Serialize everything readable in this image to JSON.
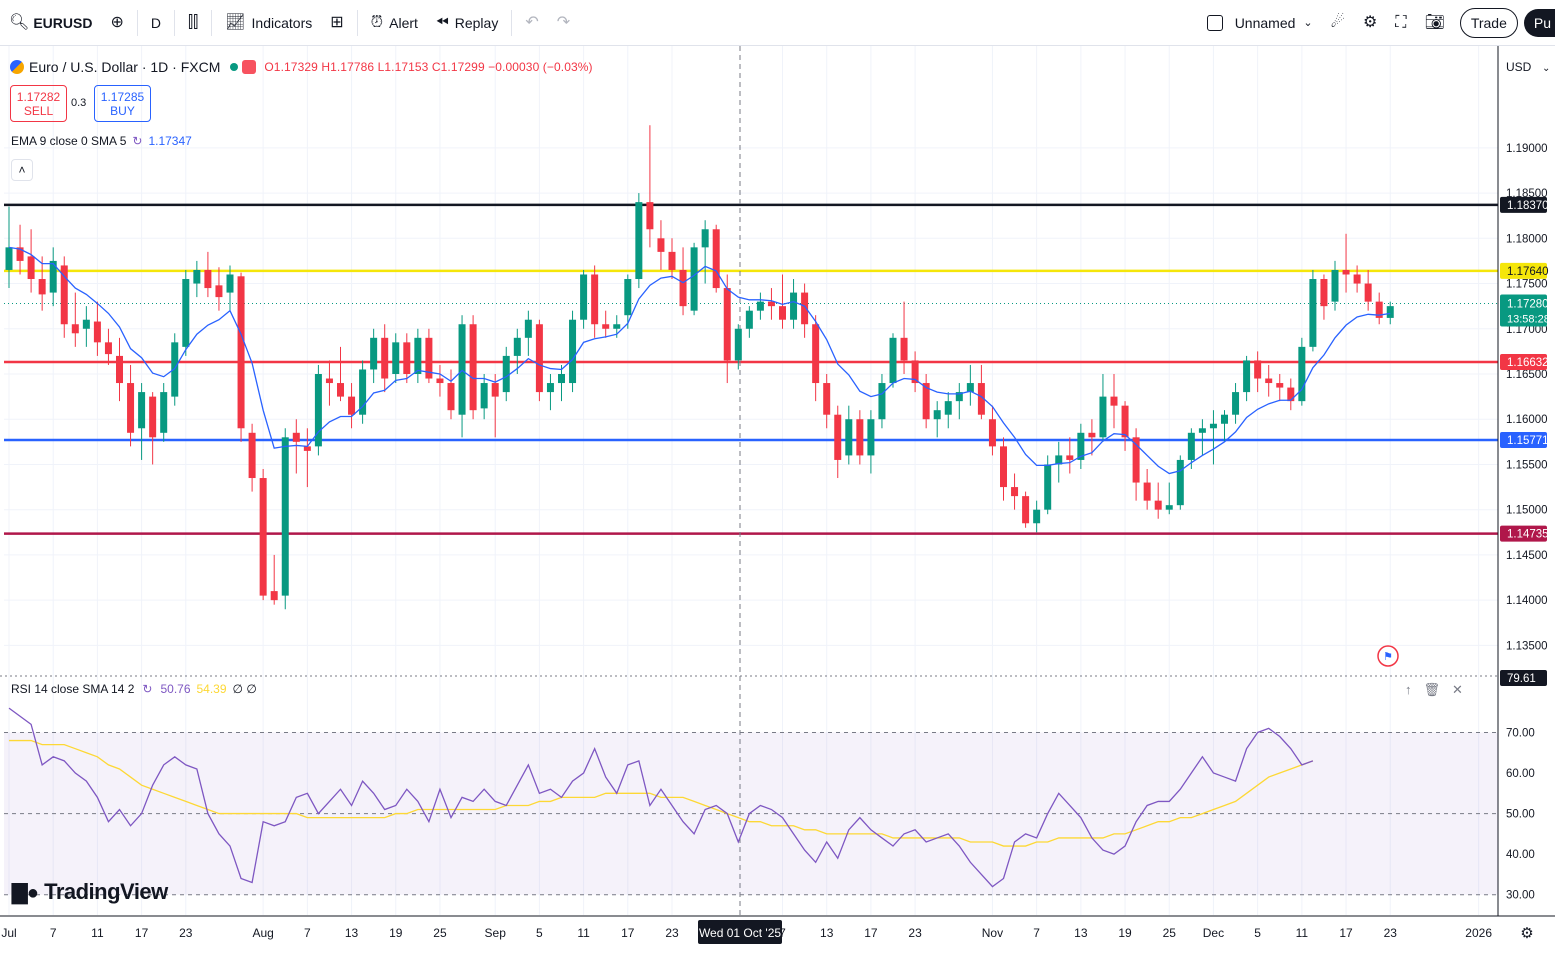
{
  "toolbar": {
    "symbol": "EURUSD",
    "interval": "D",
    "indicators_label": "Indicators",
    "alert_label": "Alert",
    "replay_label": "Replay",
    "layout_name": "Unnamed",
    "trade_label": "Trade",
    "publish_label": "Pu"
  },
  "legend": {
    "title": "Euro / U.S. Dollar · 1D · FXCM",
    "ohlc": "O1.17329 H1.17786 L1.17153 C1.17299 −0.00030 (−0.03%)"
  },
  "trade": {
    "sell_price": "1.17282",
    "sell_label": "SELL",
    "spread": "0.3",
    "buy_price": "1.17285",
    "buy_label": "BUY"
  },
  "ema": {
    "label": "EMA 9 close 0 SMA 5",
    "value": "1.17347"
  },
  "rsi_legend": {
    "label": "RSI 14 close SMA 14 2",
    "value1": "50.76",
    "value2": "54.39",
    "extra": "∅ ∅"
  },
  "currency": "USD",
  "brand": "TradingView",
  "crosshair_date": "Wed 01 Oct '25",
  "price_axis": {
    "ticks": [
      "1.19000",
      "1.18500",
      "1.18000",
      "1.17500",
      "1.17000",
      "1.16500",
      "1.16000",
      "1.15500",
      "1.15000",
      "1.14500",
      "1.14000",
      "1.13500"
    ],
    "tick_values": [
      1.19,
      1.185,
      1.18,
      1.175,
      1.17,
      1.165,
      1.16,
      1.155,
      1.15,
      1.145,
      1.14,
      1.135
    ]
  },
  "levels": [
    {
      "value": 1.1837,
      "label": "1.18370",
      "color": "#131722"
    },
    {
      "value": 1.1764,
      "label": "1.17640",
      "color": "#f5e60a"
    },
    {
      "value": 1.16632,
      "label": "1.16632",
      "color": "#f23645"
    },
    {
      "value": 1.15771,
      "label": "1.15771",
      "color": "#2962ff"
    },
    {
      "value": 1.14735,
      "label": "1.14735",
      "color": "#b0174a"
    }
  ],
  "last_price": {
    "value": 1.1728,
    "label": "1.17280",
    "countdown": "13:58:28",
    "color": "#089981"
  },
  "rsi_axis": {
    "ticks": [
      "70.00",
      "60.00",
      "50.00",
      "40.00",
      "30.00"
    ],
    "tick_values": [
      70,
      60,
      50,
      40,
      30
    ],
    "last": "79.61"
  },
  "time_axis": {
    "labels": [
      "Jul",
      "7",
      "11",
      "17",
      "23",
      "Aug",
      "7",
      "13",
      "19",
      "25",
      "Sep",
      "5",
      "11",
      "17",
      "23",
      "7",
      "13",
      "17",
      "23",
      "Nov",
      "7",
      "13",
      "19",
      "25",
      "Dec",
      "5",
      "11",
      "17",
      "23",
      "2026"
    ],
    "bar_index": [
      0,
      4,
      8,
      12,
      16,
      23,
      27,
      31,
      35,
      39,
      44,
      48,
      52,
      56,
      60,
      70,
      74,
      78,
      82,
      89,
      93,
      97,
      101,
      105,
      109,
      113,
      117,
      121,
      125,
      133
    ]
  },
  "chart_data": {
    "type": "candlestick",
    "ylim": [
      1.1325,
      1.1975
    ],
    "candles": [
      [
        1.1765,
        1.1835,
        1.1745,
        1.179
      ],
      [
        1.179,
        1.1815,
        1.176,
        1.1775
      ],
      [
        1.178,
        1.181,
        1.174,
        1.1755
      ],
      [
        1.1755,
        1.178,
        1.172,
        1.1738
      ],
      [
        1.174,
        1.179,
        1.1725,
        1.1775
      ],
      [
        1.177,
        1.178,
        1.169,
        1.1705
      ],
      [
        1.1705,
        1.174,
        1.168,
        1.1695
      ],
      [
        1.17,
        1.1725,
        1.168,
        1.171
      ],
      [
        1.1708,
        1.173,
        1.167,
        1.1685
      ],
      [
        1.1685,
        1.17,
        1.166,
        1.1672
      ],
      [
        1.167,
        1.169,
        1.162,
        1.164
      ],
      [
        1.164,
        1.166,
        1.157,
        1.1585
      ],
      [
        1.159,
        1.164,
        1.1555,
        1.163
      ],
      [
        1.1625,
        1.163,
        1.155,
        1.158
      ],
      [
        1.1585,
        1.164,
        1.1575,
        1.163
      ],
      [
        1.1625,
        1.1695,
        1.1615,
        1.1685
      ],
      [
        1.168,
        1.1765,
        1.167,
        1.1755
      ],
      [
        1.175,
        1.1775,
        1.1735,
        1.1765
      ],
      [
        1.1765,
        1.1785,
        1.1735,
        1.1745
      ],
      [
        1.1748,
        1.1768,
        1.172,
        1.1735
      ],
      [
        1.174,
        1.177,
        1.172,
        1.176
      ],
      [
        1.1758,
        1.1762,
        1.1575,
        1.159
      ],
      [
        1.1585,
        1.1595,
        1.152,
        1.1535
      ],
      [
        1.1535,
        1.1545,
        1.14,
        1.1405
      ],
      [
        1.141,
        1.145,
        1.1395,
        1.14
      ],
      [
        1.1405,
        1.159,
        1.139,
        1.158
      ],
      [
        1.1585,
        1.16,
        1.154,
        1.1575
      ],
      [
        1.157,
        1.159,
        1.1525,
        1.1565
      ],
      [
        1.157,
        1.166,
        1.156,
        1.165
      ],
      [
        1.1645,
        1.1665,
        1.1615,
        1.164
      ],
      [
        1.164,
        1.168,
        1.162,
        1.1625
      ],
      [
        1.1625,
        1.164,
        1.159,
        1.1605
      ],
      [
        1.1605,
        1.1665,
        1.1595,
        1.1655
      ],
      [
        1.1655,
        1.17,
        1.164,
        1.169
      ],
      [
        1.169,
        1.1705,
        1.163,
        1.1645
      ],
      [
        1.165,
        1.1695,
        1.164,
        1.1685
      ],
      [
        1.1685,
        1.1695,
        1.164,
        1.165
      ],
      [
        1.165,
        1.17,
        1.164,
        1.169
      ],
      [
        1.169,
        1.17,
        1.164,
        1.1645
      ],
      [
        1.1645,
        1.166,
        1.1625,
        1.164
      ],
      [
        1.164,
        1.1655,
        1.16,
        1.161
      ],
      [
        1.1605,
        1.1715,
        1.158,
        1.1705
      ],
      [
        1.1705,
        1.1715,
        1.16,
        1.161
      ],
      [
        1.1612,
        1.165,
        1.16,
        1.164
      ],
      [
        1.164,
        1.165,
        1.158,
        1.1625
      ],
      [
        1.163,
        1.168,
        1.162,
        1.167
      ],
      [
        1.167,
        1.17,
        1.165,
        1.169
      ],
      [
        1.169,
        1.172,
        1.167,
        1.171
      ],
      [
        1.1705,
        1.171,
        1.162,
        1.163
      ],
      [
        1.163,
        1.165,
        1.161,
        1.164
      ],
      [
        1.164,
        1.166,
        1.162,
        1.165
      ],
      [
        1.164,
        1.172,
        1.163,
        1.171
      ],
      [
        1.171,
        1.1765,
        1.17,
        1.176
      ],
      [
        1.176,
        1.177,
        1.169,
        1.1705
      ],
      [
        1.1705,
        1.172,
        1.169,
        1.17
      ],
      [
        1.17,
        1.1715,
        1.169,
        1.1705
      ],
      [
        1.1715,
        1.176,
        1.17,
        1.1755
      ],
      [
        1.1755,
        1.185,
        1.1745,
        1.184
      ],
      [
        1.184,
        1.1925,
        1.179,
        1.181
      ],
      [
        1.18,
        1.182,
        1.1765,
        1.1785
      ],
      [
        1.1785,
        1.18,
        1.1755,
        1.1765
      ],
      [
        1.1765,
        1.179,
        1.1715,
        1.1725
      ],
      [
        1.172,
        1.1795,
        1.1715,
        1.179
      ],
      [
        1.179,
        1.182,
        1.175,
        1.181
      ],
      [
        1.181,
        1.1815,
        1.174,
        1.1745
      ],
      [
        1.1745,
        1.176,
        1.164,
        1.1665
      ],
      [
        1.1665,
        1.1705,
        1.1655,
        1.17
      ],
      [
        1.17,
        1.1725,
        1.169,
        1.172
      ],
      [
        1.172,
        1.174,
        1.171,
        1.173
      ],
      [
        1.173,
        1.1745,
        1.171,
        1.1725
      ],
      [
        1.1725,
        1.176,
        1.17,
        1.171
      ],
      [
        1.171,
        1.1755,
        1.17,
        1.174
      ],
      [
        1.174,
        1.175,
        1.169,
        1.1705
      ],
      [
        1.1705,
        1.1715,
        1.162,
        1.164
      ],
      [
        1.164,
        1.165,
        1.159,
        1.1605
      ],
      [
        1.1605,
        1.1615,
        1.1535,
        1.1555
      ],
      [
        1.156,
        1.1615,
        1.155,
        1.16
      ],
      [
        1.16,
        1.161,
        1.155,
        1.156
      ],
      [
        1.156,
        1.161,
        1.154,
        1.16
      ],
      [
        1.16,
        1.165,
        1.159,
        1.164
      ],
      [
        1.164,
        1.1695,
        1.1635,
        1.169
      ],
      [
        1.169,
        1.173,
        1.165,
        1.1665
      ],
      [
        1.1665,
        1.1675,
        1.163,
        1.164
      ],
      [
        1.164,
        1.165,
        1.159,
        1.16
      ],
      [
        1.16,
        1.162,
        1.158,
        1.161
      ],
      [
        1.1605,
        1.163,
        1.159,
        1.162
      ],
      [
        1.162,
        1.164,
        1.16,
        1.163
      ],
      [
        1.163,
        1.166,
        1.1615,
        1.164
      ],
      [
        1.164,
        1.166,
        1.16,
        1.1605
      ],
      [
        1.16,
        1.1615,
        1.156,
        1.157
      ],
      [
        1.157,
        1.158,
        1.151,
        1.1525
      ],
      [
        1.1525,
        1.154,
        1.15,
        1.1515
      ],
      [
        1.1515,
        1.152,
        1.148,
        1.1485
      ],
      [
        1.1485,
        1.151,
        1.1475,
        1.15
      ],
      [
        1.15,
        1.156,
        1.1495,
        1.155
      ],
      [
        1.155,
        1.1575,
        1.153,
        1.156
      ],
      [
        1.156,
        1.158,
        1.154,
        1.1555
      ],
      [
        1.1555,
        1.1595,
        1.1545,
        1.1585
      ],
      [
        1.1585,
        1.16,
        1.156,
        1.158
      ],
      [
        1.158,
        1.165,
        1.1575,
        1.1625
      ],
      [
        1.1625,
        1.165,
        1.159,
        1.1615
      ],
      [
        1.1615,
        1.162,
        1.1565,
        1.158
      ],
      [
        1.158,
        1.159,
        1.151,
        1.153
      ],
      [
        1.153,
        1.1545,
        1.15,
        1.151
      ],
      [
        1.151,
        1.153,
        1.149,
        1.15
      ],
      [
        1.15,
        1.153,
        1.1495,
        1.1505
      ],
      [
        1.1505,
        1.156,
        1.15,
        1.1555
      ],
      [
        1.1555,
        1.159,
        1.1545,
        1.1585
      ],
      [
        1.1585,
        1.16,
        1.156,
        1.159
      ],
      [
        1.159,
        1.161,
        1.155,
        1.1595
      ],
      [
        1.1595,
        1.161,
        1.1575,
        1.1605
      ],
      [
        1.1605,
        1.164,
        1.1595,
        1.163
      ],
      [
        1.163,
        1.167,
        1.162,
        1.1665
      ],
      [
        1.1665,
        1.1675,
        1.163,
        1.1645
      ],
      [
        1.1645,
        1.166,
        1.1625,
        1.164
      ],
      [
        1.164,
        1.165,
        1.162,
        1.1635
      ],
      [
        1.1635,
        1.1645,
        1.161,
        1.162
      ],
      [
        1.162,
        1.169,
        1.1615,
        1.168
      ],
      [
        1.168,
        1.1765,
        1.1675,
        1.1755
      ],
      [
        1.1755,
        1.176,
        1.171,
        1.1725
      ],
      [
        1.173,
        1.1775,
        1.172,
        1.1765
      ],
      [
        1.1765,
        1.1805,
        1.174,
        1.176
      ],
      [
        1.176,
        1.177,
        1.174,
        1.175
      ],
      [
        1.175,
        1.1765,
        1.172,
        1.173
      ],
      [
        1.173,
        1.174,
        1.1705,
        1.1712
      ],
      [
        1.1712,
        1.173,
        1.1705,
        1.1725
      ]
    ],
    "ema": [
      1.179,
      1.1788,
      1.1782,
      1.1772,
      1.1772,
      1.1758,
      1.1745,
      1.1738,
      1.1728,
      1.1717,
      1.1702,
      1.1678,
      1.1668,
      1.1651,
      1.1647,
      1.1656,
      1.1677,
      1.1694,
      1.1704,
      1.171,
      1.172,
      1.1694,
      1.1662,
      1.161,
      1.1568,
      1.157,
      1.1571,
      1.157,
      1.1586,
      1.1597,
      1.1603,
      1.1603,
      1.1614,
      1.1629,
      1.1632,
      1.1643,
      1.1645,
      1.1654,
      1.1652,
      1.165,
      1.1642,
      1.1654,
      1.1645,
      1.1645,
      1.1641,
      1.1647,
      1.1656,
      1.1667,
      1.166,
      1.1656,
      1.1655,
      1.1666,
      1.1685,
      1.1689,
      1.1691,
      1.1694,
      1.1706,
      1.1733,
      1.1748,
      1.1756,
      1.1758,
      1.1751,
      1.1759,
      1.1769,
      1.1764,
      1.1744,
      1.1735,
      1.1732,
      1.1732,
      1.1731,
      1.1727,
      1.173,
      1.1725,
      1.1708,
      1.1688,
      1.1661,
      1.1649,
      1.1631,
      1.1625,
      1.1628,
      1.164,
      1.1645,
      1.1644,
      1.1635,
      1.163,
      1.1628,
      1.1628,
      1.1631,
      1.1625,
      1.1614,
      1.1596,
      1.158,
      1.1561,
      1.1549,
      1.1549,
      1.1551,
      1.1552,
      1.1559,
      1.1563,
      1.1576,
      1.1584,
      1.1583,
      1.1572,
      1.156,
      1.1548,
      1.154,
      1.1543,
      1.1552,
      1.156,
      1.1567,
      1.1575,
      1.1586,
      1.1602,
      1.1611,
      1.1617,
      1.1621,
      1.1621,
      1.1633,
      1.1657,
      1.1671,
      1.169,
      1.1704,
      1.1713,
      1.1716,
      1.1715,
      1.1717
    ],
    "rsi": [
      76,
      74,
      72,
      62,
      64,
      63,
      60,
      58,
      54,
      48,
      51,
      47,
      50,
      57,
      62,
      64,
      62,
      61,
      50,
      45,
      42,
      34,
      33,
      48,
      47,
      48,
      54,
      55,
      50,
      53,
      56,
      52,
      58,
      55,
      51,
      52,
      56,
      53,
      48,
      56,
      49,
      54,
      53,
      56,
      53,
      52,
      57,
      62,
      55,
      56,
      54,
      58,
      60,
      66,
      59,
      55,
      62,
      63,
      52,
      56,
      52,
      48,
      45,
      51,
      52,
      50,
      43,
      50,
      52,
      51,
      49,
      45,
      41,
      38,
      43,
      39,
      46,
      49,
      46,
      44,
      42,
      45,
      46,
      43,
      44,
      45,
      42,
      38,
      35,
      32,
      34,
      43,
      45,
      44,
      50,
      55,
      52,
      49,
      44,
      41,
      40,
      42,
      48,
      52,
      53,
      53,
      56,
      60,
      64,
      60,
      59,
      58,
      66,
      70,
      71,
      69,
      66,
      62,
      63
    ],
    "rsi_sma": [
      68,
      68,
      68,
      67,
      67,
      67,
      66,
      65,
      64,
      62,
      61,
      59,
      57,
      56,
      55,
      54,
      53,
      52,
      51,
      50,
      50,
      50,
      50,
      50,
      50,
      50,
      50,
      49,
      49,
      49,
      49,
      49,
      49,
      49,
      49,
      50,
      50,
      51,
      51,
      51,
      51,
      51,
      51,
      51,
      51,
      52,
      52,
      52,
      53,
      53,
      54,
      54,
      54,
      54,
      55,
      55,
      55,
      55,
      55,
      54,
      54,
      54,
      53,
      52,
      51,
      50,
      49,
      48,
      48,
      47,
      47,
      47,
      46,
      46,
      45,
      45,
      45,
      45,
      45,
      45,
      44,
      44,
      44,
      44,
      44,
      44,
      44,
      43,
      43,
      43,
      42,
      42,
      42,
      43,
      43,
      44,
      44,
      44,
      44,
      44,
      45,
      45,
      46,
      47,
      48,
      48,
      49,
      49,
      50,
      51,
      52,
      53,
      55,
      57,
      59,
      60,
      61,
      62,
      63
    ]
  }
}
